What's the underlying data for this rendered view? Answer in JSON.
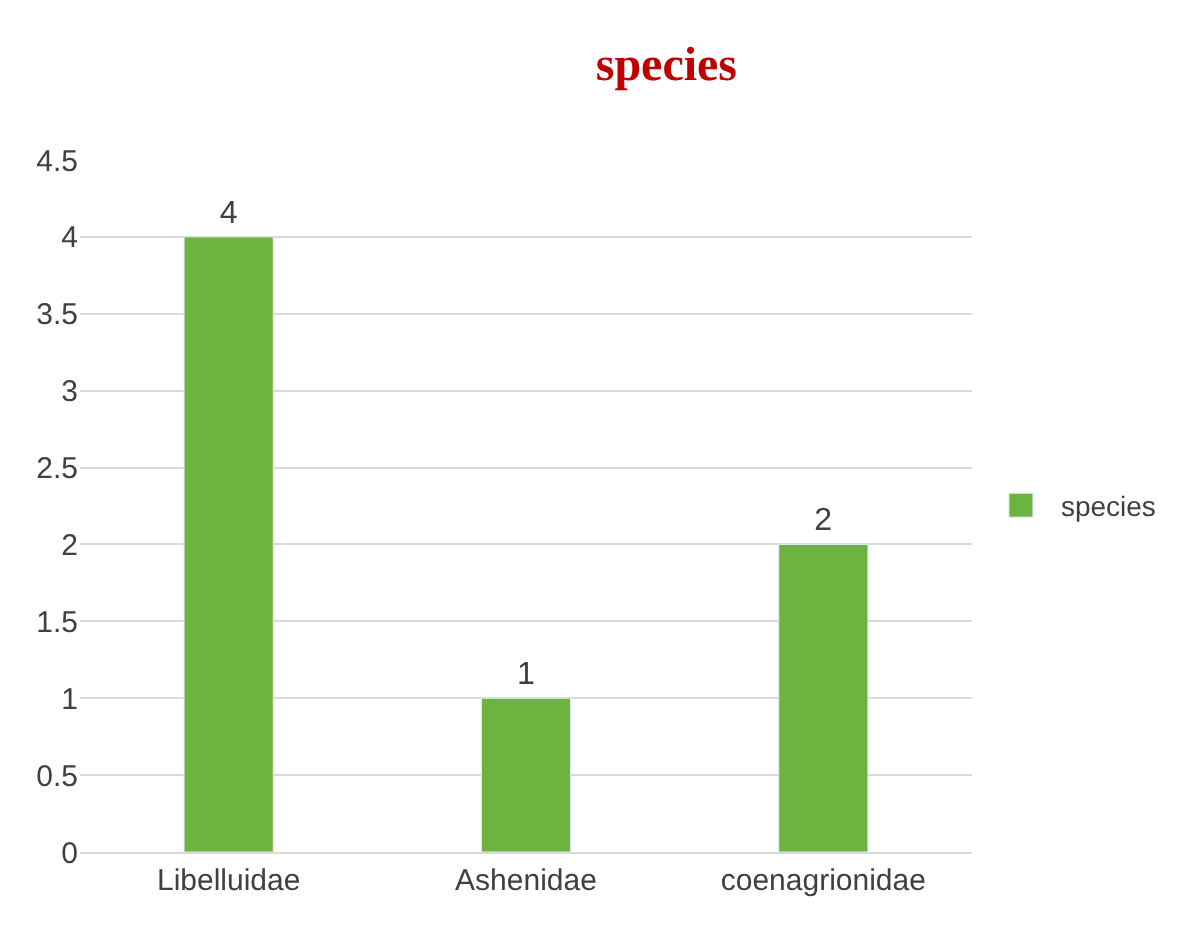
{
  "chart_data": {
    "type": "bar",
    "title": "species",
    "categories": [
      "Libelluidae",
      "Ashenidae",
      "coenagrionidae"
    ],
    "series": [
      {
        "name": "species",
        "color": "#6db33f",
        "values": [
          4,
          1,
          2
        ]
      }
    ],
    "ylim": [
      0,
      4.5
    ],
    "yticks": [
      0,
      0.5,
      1,
      1.5,
      2,
      2.5,
      3,
      3.5,
      4,
      4.5
    ],
    "grid": "y",
    "legend": "right",
    "data_labels": true
  }
}
